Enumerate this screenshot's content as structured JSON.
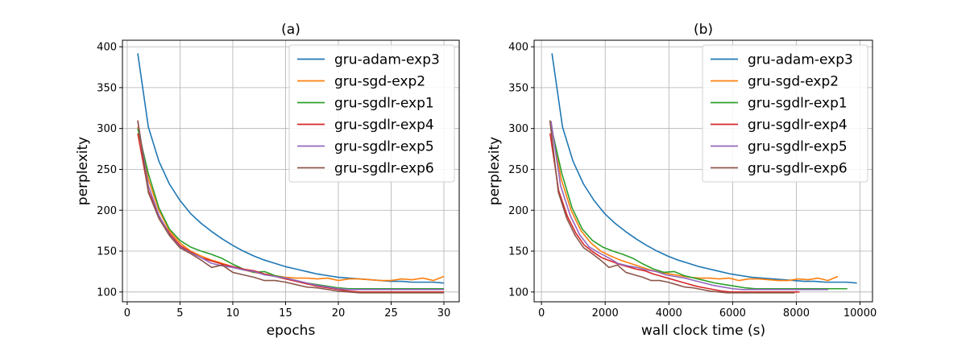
{
  "chart_data": [
    {
      "type": "line",
      "title": "(a)",
      "xlabel": "epochs",
      "ylabel": "perplexity",
      "xlim": [
        -0.45,
        31.45
      ],
      "ylim": [
        88,
        408
      ],
      "xticks": [
        0,
        5,
        10,
        15,
        20,
        25,
        30
      ],
      "yticks": [
        100,
        150,
        200,
        250,
        300,
        350,
        400
      ],
      "grid": true,
      "legend": "top-right",
      "series": [
        {
          "name": "gru-adam-exp3",
          "color": "#1f77b4",
          "x": [
            1,
            2,
            3,
            4,
            5,
            6,
            7,
            8,
            9,
            10,
            11,
            12,
            13,
            14,
            15,
            16,
            17,
            18,
            19,
            20,
            21,
            22,
            23,
            24,
            25,
            26,
            27,
            28,
            29,
            30
          ],
          "y": [
            392,
            302,
            260,
            232,
            212,
            196,
            184,
            174,
            165,
            157,
            150,
            144,
            139,
            135,
            131,
            128,
            125,
            122,
            120,
            118,
            117,
            116,
            115,
            114,
            113,
            113,
            112,
            112,
            112,
            111
          ]
        },
        {
          "name": "gru-sgd-exp2",
          "color": "#ff7f0e",
          "x": [
            1,
            2,
            3,
            4,
            5,
            6,
            7,
            8,
            9,
            10,
            11,
            12,
            13,
            14,
            15,
            16,
            17,
            18,
            19,
            20,
            21,
            22,
            23,
            24,
            25,
            26,
            27,
            28,
            29,
            30
          ],
          "y": [
            302,
            238,
            200,
            175,
            160,
            150,
            144,
            139,
            135,
            131,
            127,
            124,
            122,
            120,
            118,
            117,
            117,
            116,
            117,
            114,
            116,
            116,
            115,
            114,
            114,
            116,
            115,
            117,
            114,
            119
          ]
        },
        {
          "name": "gru-sgdlr-exp1",
          "color": "#2ca02c",
          "x": [
            1,
            2,
            3,
            4,
            5,
            6,
            7,
            8,
            9,
            10,
            11,
            12,
            13,
            14,
            15,
            16,
            17,
            18,
            19,
            20,
            21,
            22,
            23,
            24,
            25,
            26,
            27,
            28,
            29,
            30
          ],
          "y": [
            300,
            245,
            203,
            177,
            163,
            155,
            150,
            146,
            141,
            134,
            128,
            124,
            125,
            120,
            117,
            114,
            111,
            109,
            107,
            105,
            104,
            104,
            104,
            104,
            104,
            104,
            104,
            104,
            104,
            104
          ]
        },
        {
          "name": "gru-sgdlr-exp4",
          "color": "#d62728",
          "x": [
            1,
            2,
            3,
            4,
            5,
            6,
            7,
            8,
            9,
            10,
            11,
            12,
            13,
            14,
            15,
            16,
            17,
            18,
            19,
            20,
            21,
            22,
            23,
            24,
            25,
            26,
            27,
            28,
            29,
            30
          ],
          "y": [
            294,
            224,
            193,
            172,
            157,
            149,
            142,
            138,
            134,
            131,
            128,
            126,
            122,
            119,
            116,
            113,
            110,
            107,
            105,
            103,
            101,
            100,
            100,
            100,
            100,
            100,
            100,
            100,
            100,
            100
          ]
        },
        {
          "name": "gru-sgdlr-exp5",
          "color": "#9467bd",
          "x": [
            1,
            2,
            3,
            4,
            5,
            6,
            7,
            8,
            9,
            10,
            11,
            12,
            13,
            14,
            15,
            16,
            17,
            18,
            19,
            20,
            21,
            22,
            23,
            24,
            25,
            26,
            27,
            28,
            29,
            30
          ],
          "y": [
            309,
            230,
            194,
            170,
            155,
            148,
            142,
            135,
            132,
            130,
            127,
            125,
            121,
            119,
            117,
            114,
            111,
            108,
            106,
            104,
            103,
            103,
            103,
            103,
            103,
            103,
            103,
            103,
            103,
            103
          ]
        },
        {
          "name": "gru-sgdlr-exp6",
          "color": "#8c564b",
          "x": [
            1,
            2,
            3,
            4,
            5,
            6,
            7,
            8,
            9,
            10,
            11,
            12,
            13,
            14,
            15,
            16,
            17,
            18,
            19,
            20,
            21,
            22,
            23,
            24,
            25,
            26,
            27,
            28,
            29,
            30
          ],
          "y": [
            310,
            222,
            190,
            169,
            154,
            147,
            139,
            130,
            133,
            124,
            121,
            118,
            114,
            114,
            112,
            109,
            106,
            105,
            103,
            101,
            100,
            99,
            99,
            99,
            99,
            99,
            99,
            99,
            99,
            99
          ]
        }
      ]
    },
    {
      "type": "line",
      "title": "(b)",
      "xlabel": "wall clock time (s)",
      "ylabel": "perplexity",
      "xlim": [
        -230,
        10390
      ],
      "ylim": [
        88,
        408
      ],
      "xticks": [
        0,
        2000,
        4000,
        6000,
        8000,
        10000
      ],
      "yticks": [
        100,
        150,
        200,
        250,
        300,
        350,
        400
      ],
      "grid": true,
      "legend": "top-right",
      "series": [
        {
          "name": "gru-adam-exp3",
          "color": "#1f77b4",
          "x": [
            330,
            660,
            990,
            1320,
            1650,
            1980,
            2310,
            2640,
            2970,
            3300,
            3630,
            3960,
            4290,
            4620,
            4950,
            5280,
            5610,
            5940,
            6270,
            6600,
            6930,
            7260,
            7590,
            7920,
            8250,
            8580,
            8910,
            9240,
            9570,
            9900
          ],
          "y": [
            392,
            302,
            260,
            232,
            212,
            196,
            184,
            174,
            165,
            157,
            150,
            144,
            139,
            135,
            131,
            128,
            125,
            122,
            120,
            118,
            117,
            116,
            115,
            114,
            113,
            113,
            112,
            112,
            112,
            111
          ]
        },
        {
          "name": "gru-sgd-exp2",
          "color": "#ff7f0e",
          "x": [
            310,
            620,
            930,
            1240,
            1550,
            1860,
            2170,
            2480,
            2790,
            3100,
            3410,
            3720,
            4030,
            4340,
            4650,
            4960,
            5270,
            5580,
            5890,
            6200,
            6510,
            6820,
            7130,
            7440,
            7750,
            8060,
            8370,
            8680,
            8990,
            9300
          ],
          "y": [
            302,
            238,
            200,
            175,
            160,
            150,
            144,
            139,
            135,
            131,
            127,
            124,
            122,
            120,
            118,
            117,
            117,
            116,
            117,
            114,
            116,
            116,
            115,
            114,
            114,
            116,
            115,
            117,
            114,
            119
          ]
        },
        {
          "name": "gru-sgdlr-exp1",
          "color": "#2ca02c",
          "x": [
            320,
            640,
            960,
            1280,
            1600,
            1920,
            2240,
            2560,
            2880,
            3200,
            3520,
            3840,
            4160,
            4480,
            4800,
            5120,
            5440,
            5760,
            6080,
            6400,
            6720,
            7040,
            7360,
            7680,
            8000,
            8320,
            8640,
            8960,
            9280,
            9600
          ],
          "y": [
            300,
            245,
            203,
            177,
            163,
            155,
            150,
            146,
            141,
            134,
            128,
            124,
            125,
            120,
            117,
            114,
            111,
            109,
            107,
            105,
            104,
            104,
            104,
            104,
            104,
            104,
            104,
            104,
            104,
            104
          ]
        },
        {
          "name": "gru-sgdlr-exp4",
          "color": "#d62728",
          "x": [
            270,
            540,
            810,
            1080,
            1350,
            1620,
            1890,
            2160,
            2430,
            2700,
            2970,
            3240,
            3510,
            3780,
            4050,
            4320,
            4590,
            4860,
            5130,
            5400,
            5670,
            5940,
            6210,
            6480,
            6750,
            7020,
            7290,
            7560,
            7830,
            8100
          ],
          "y": [
            294,
            224,
            193,
            172,
            157,
            149,
            142,
            138,
            134,
            131,
            128,
            126,
            122,
            119,
            116,
            113,
            110,
            107,
            105,
            103,
            101,
            100,
            100,
            100,
            100,
            100,
            100,
            100,
            100,
            100
          ]
        },
        {
          "name": "gru-sgdlr-exp5",
          "color": "#9467bd",
          "x": [
            300,
            600,
            900,
            1200,
            1500,
            1800,
            2100,
            2400,
            2700,
            3000,
            3300,
            3600,
            3900,
            4200,
            4500,
            4800,
            5100,
            5400,
            5700,
            6000,
            6300,
            6600,
            6900,
            7200,
            7500,
            7800,
            8100,
            8400,
            8700,
            9000
          ],
          "y": [
            309,
            230,
            194,
            170,
            155,
            148,
            142,
            135,
            132,
            130,
            127,
            125,
            121,
            119,
            117,
            114,
            111,
            108,
            106,
            104,
            103,
            103,
            103,
            103,
            103,
            103,
            103,
            103,
            103,
            103
          ]
        },
        {
          "name": "gru-sgdlr-exp6",
          "color": "#8c564b",
          "x": [
            265,
            530,
            795,
            1060,
            1325,
            1590,
            1855,
            2120,
            2385,
            2650,
            2915,
            3180,
            3445,
            3710,
            3975,
            4240,
            4505,
            4770,
            5035,
            5300,
            5565,
            5830,
            6095,
            6360,
            6625,
            6890,
            7155,
            7420,
            7685,
            7950
          ],
          "y": [
            310,
            222,
            190,
            169,
            154,
            147,
            139,
            130,
            133,
            124,
            121,
            118,
            114,
            114,
            112,
            109,
            106,
            105,
            103,
            101,
            100,
            99,
            99,
            99,
            99,
            99,
            99,
            99,
            99,
            99
          ]
        }
      ]
    }
  ]
}
